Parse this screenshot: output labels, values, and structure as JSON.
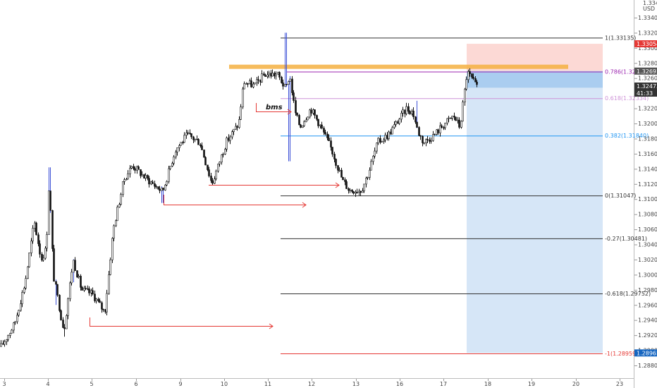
{
  "chart_data": {
    "type": "candlestick",
    "symbol_header": [
      "1.33400",
      "USD"
    ],
    "y_axis_labels": [
      "1.33400",
      "1.33200",
      "1.33000",
      "1.32800",
      "1.32600",
      "1.32400",
      "1.32200",
      "1.32000",
      "1.31800",
      "1.31600",
      "1.31400",
      "1.31200",
      "1.31000",
      "1.30800",
      "1.30600",
      "1.30400",
      "1.30200",
      "1.30000",
      "1.29800",
      "1.29600",
      "1.29400",
      "1.29200",
      "1.29000",
      "1.28800"
    ],
    "ylim": [
      1.2868,
      1.3362
    ],
    "x_axis_labels": [
      "3",
      "4",
      "5",
      "6",
      "9",
      "10",
      "11",
      "12",
      "13",
      "16",
      "17",
      "18",
      "19",
      "20",
      "23"
    ],
    "fib_levels": [
      {
        "label": "1(1.33135)",
        "value": 1.33135,
        "color": "#333333"
      },
      {
        "label": "0.786(1.32686)",
        "value": 1.32686,
        "color": "#9c27b0"
      },
      {
        "label": "0.618(1.32334)",
        "value": 1.32334,
        "color": "#ce93d8"
      },
      {
        "label": "0.382(1.31840)",
        "value": 1.3184,
        "color": "#2196f3"
      },
      {
        "label": "0(1.31047)",
        "value": 1.31047,
        "color": "#333333"
      },
      {
        "label": "-0.27(1.30481)",
        "value": 1.30481,
        "color": "#333333"
      },
      {
        "label": "-0.618(1.29752)",
        "value": 1.29752,
        "color": "#333333"
      },
      {
        "label": "-1(1.28959)",
        "value": 1.28959,
        "color": "#e53935"
      }
    ],
    "price_tags": [
      {
        "text": "1.33054",
        "value": 1.33054,
        "color": "#e53935"
      },
      {
        "text": "1.32693",
        "value": 1.32693,
        "color": "#555555"
      },
      {
        "text": "1.32473",
        "value": 1.32473,
        "color": "#333333"
      },
      {
        "text": "41:33",
        "value": 1.32396,
        "color": "#333333"
      },
      {
        "text": "1.28965",
        "value": 1.28965,
        "color": "#1565c0"
      }
    ],
    "annotation": "bms",
    "resistance_zone": {
      "value": 1.3275,
      "color": "#f5b041"
    },
    "position": {
      "entry": 1.32693,
      "stop": 1.33054,
      "target": 1.28965,
      "stop_color": "#fcd9d5",
      "target_color": "#d6e6f7",
      "profit_color": "#aacdf0"
    },
    "candle_color": "#111111",
    "wick_color": "#3b4fd6",
    "arrow_color": "#e53935"
  }
}
